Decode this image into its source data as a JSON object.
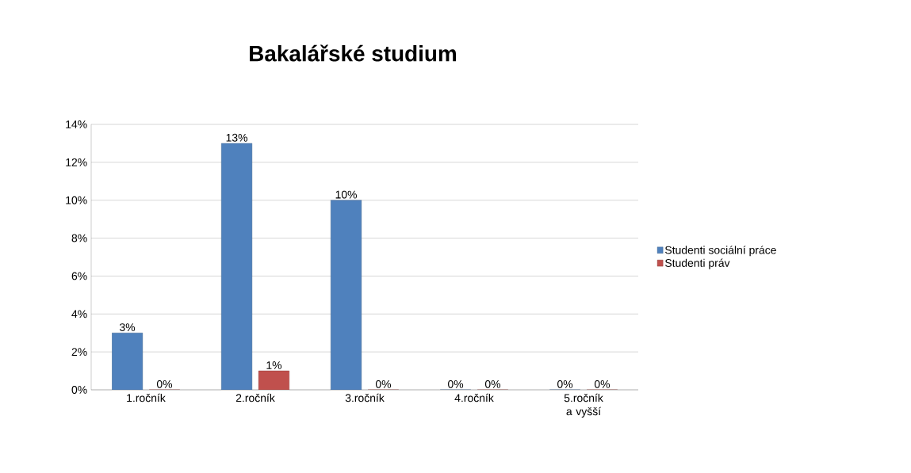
{
  "chart_data": {
    "type": "bar",
    "title": "Bakalářské studium",
    "categories": [
      "1.ročník",
      "2.ročník",
      "3.ročník",
      "4.ročník",
      "5.ročník a vyšší"
    ],
    "series": [
      {
        "name": "Studenti sociální práce",
        "color": "#4f81bd",
        "values": [
          3,
          13,
          10,
          0,
          0
        ],
        "value_labels": [
          "3%",
          "13%",
          "10%",
          "0%",
          "0%"
        ]
      },
      {
        "name": "Studenti práv",
        "color": "#c0504d",
        "values": [
          0,
          1,
          0,
          0,
          0
        ],
        "value_labels": [
          "0%",
          "1%",
          "0%",
          "0%",
          "0%"
        ]
      }
    ],
    "ylim": [
      0,
      14
    ],
    "yticks": [
      {
        "value": 0,
        "label": "0%"
      },
      {
        "value": 2,
        "label": "2%"
      },
      {
        "value": 4,
        "label": "4%"
      },
      {
        "value": 6,
        "label": "6%"
      },
      {
        "value": 8,
        "label": "8%"
      },
      {
        "value": 10,
        "label": "10%"
      },
      {
        "value": 12,
        "label": "12%"
      },
      {
        "value": 14,
        "label": "14%"
      }
    ],
    "grid": "y",
    "legend": "right"
  }
}
